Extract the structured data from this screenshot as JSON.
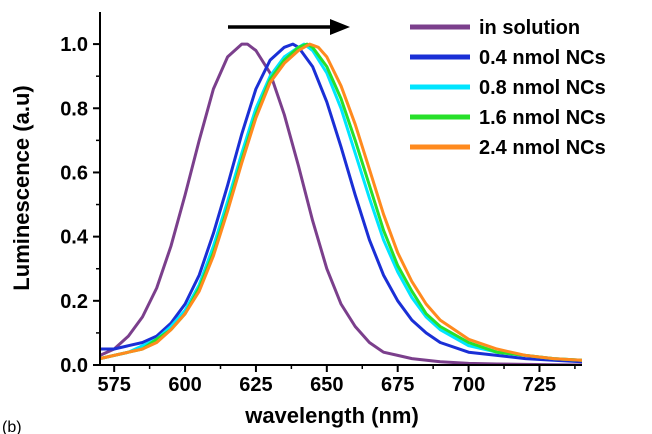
{
  "panel_label": "(b)",
  "chart_data": {
    "type": "line",
    "xlabel": "wavelength (nm)",
    "ylabel": "Luminescence (a.u)",
    "xlim": [
      570,
      740
    ],
    "ylim": [
      0.0,
      1.1
    ],
    "xticks": [
      575,
      600,
      625,
      650,
      675,
      700,
      725
    ],
    "yticks": [
      0.0,
      0.2,
      0.4,
      0.6,
      0.8,
      1.0
    ],
    "annotation": "arrow pointing right, indicating red-shift of peak",
    "legend_position": "top-right",
    "series": [
      {
        "name": "in solution",
        "color": "#7b3f8c",
        "x": [
          570,
          575,
          580,
          585,
          590,
          595,
          600,
          605,
          610,
          615,
          620,
          622,
          625,
          630,
          635,
          640,
          645,
          650,
          655,
          660,
          665,
          670,
          675,
          680,
          690,
          700,
          710,
          720,
          730,
          740
        ],
        "y": [
          0.03,
          0.05,
          0.09,
          0.15,
          0.24,
          0.37,
          0.53,
          0.7,
          0.86,
          0.96,
          1.0,
          1.0,
          0.98,
          0.91,
          0.78,
          0.62,
          0.45,
          0.3,
          0.19,
          0.12,
          0.07,
          0.04,
          0.03,
          0.02,
          0.01,
          0.005,
          0.003,
          0.002,
          0.001,
          0.0
        ]
      },
      {
        "name": "0.4 nmol NCs",
        "color": "#1a2fd6",
        "x": [
          570,
          575,
          580,
          585,
          590,
          595,
          600,
          605,
          610,
          615,
          620,
          625,
          630,
          635,
          638,
          640,
          645,
          650,
          655,
          660,
          665,
          670,
          675,
          680,
          685,
          690,
          700,
          710,
          720,
          730,
          740
        ],
        "y": [
          0.05,
          0.05,
          0.06,
          0.07,
          0.09,
          0.13,
          0.19,
          0.28,
          0.41,
          0.56,
          0.72,
          0.86,
          0.95,
          0.99,
          1.0,
          0.99,
          0.93,
          0.82,
          0.68,
          0.53,
          0.39,
          0.28,
          0.2,
          0.14,
          0.1,
          0.07,
          0.04,
          0.03,
          0.02,
          0.015,
          0.01
        ]
      },
      {
        "name": "0.8 nmol NCs",
        "color": "#00e5ff",
        "x": [
          570,
          575,
          580,
          585,
          590,
          595,
          600,
          605,
          610,
          615,
          620,
          625,
          630,
          635,
          640,
          642,
          645,
          650,
          655,
          660,
          665,
          670,
          675,
          680,
          685,
          690,
          700,
          710,
          720,
          730,
          740
        ],
        "y": [
          0.02,
          0.03,
          0.04,
          0.06,
          0.08,
          0.12,
          0.17,
          0.25,
          0.37,
          0.51,
          0.66,
          0.8,
          0.9,
          0.96,
          0.99,
          1.0,
          0.98,
          0.91,
          0.8,
          0.66,
          0.52,
          0.39,
          0.29,
          0.21,
          0.15,
          0.11,
          0.06,
          0.04,
          0.03,
          0.02,
          0.015
        ]
      },
      {
        "name": "1.6 nmol NCs",
        "color": "#27e02a",
        "x": [
          570,
          575,
          580,
          585,
          590,
          595,
          600,
          605,
          610,
          615,
          620,
          625,
          630,
          635,
          640,
          643,
          645,
          650,
          655,
          660,
          665,
          670,
          675,
          680,
          685,
          690,
          700,
          710,
          720,
          730,
          740
        ],
        "y": [
          0.02,
          0.03,
          0.04,
          0.05,
          0.08,
          0.11,
          0.16,
          0.24,
          0.35,
          0.49,
          0.64,
          0.78,
          0.89,
          0.95,
          0.99,
          1.0,
          0.99,
          0.93,
          0.83,
          0.7,
          0.56,
          0.42,
          0.31,
          0.23,
          0.16,
          0.12,
          0.07,
          0.04,
          0.03,
          0.02,
          0.015
        ]
      },
      {
        "name": "2.4 nmol NCs",
        "color": "#ff8a1e",
        "x": [
          570,
          575,
          580,
          585,
          590,
          595,
          600,
          605,
          610,
          615,
          620,
          625,
          630,
          635,
          640,
          644,
          647,
          650,
          655,
          660,
          665,
          670,
          675,
          680,
          685,
          690,
          700,
          710,
          720,
          730,
          740
        ],
        "y": [
          0.02,
          0.03,
          0.04,
          0.05,
          0.07,
          0.11,
          0.16,
          0.23,
          0.34,
          0.48,
          0.63,
          0.77,
          0.88,
          0.94,
          0.98,
          1.0,
          0.99,
          0.96,
          0.87,
          0.75,
          0.61,
          0.47,
          0.35,
          0.26,
          0.19,
          0.14,
          0.08,
          0.05,
          0.03,
          0.02,
          0.015
        ]
      }
    ]
  }
}
